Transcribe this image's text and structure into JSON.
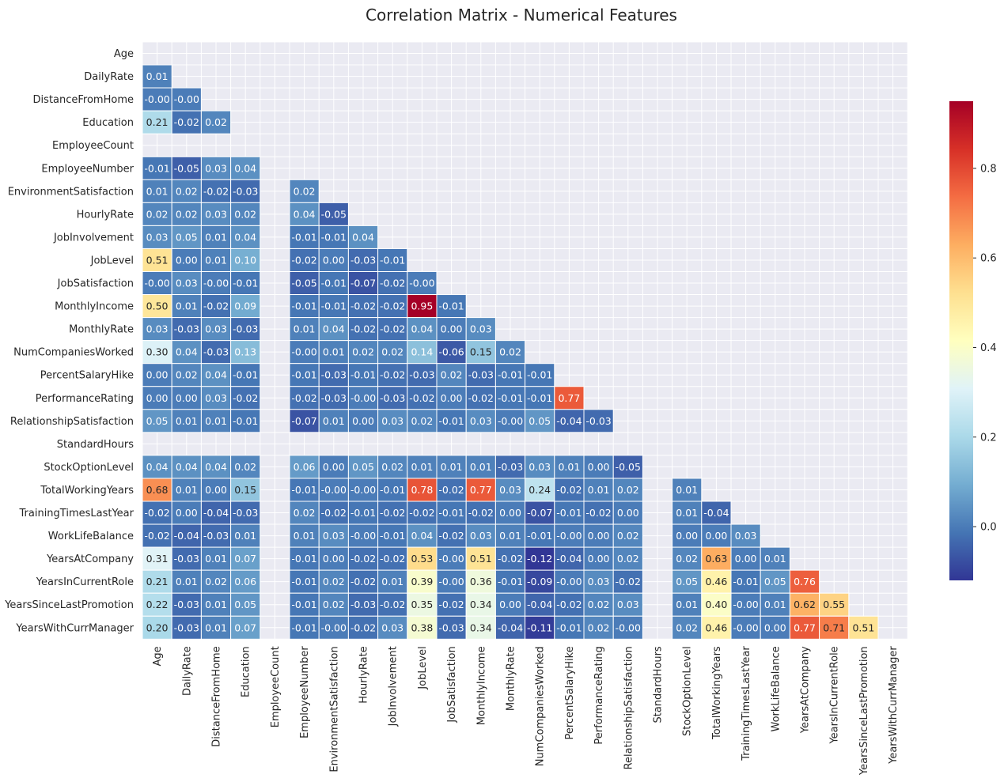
{
  "chart_data": {
    "type": "heatmap",
    "title": "Correlation Matrix - Numerical Features",
    "mask": "upper-triangle-and-diagonal",
    "value_format": "0.00",
    "colormap": "RdYlBu_r",
    "colorscale": {
      "vmin": -0.12,
      "vmax": 0.95,
      "stops": [
        {
          "t": 0.0,
          "color": "#313695"
        },
        {
          "t": 0.1,
          "color": "#4575b4"
        },
        {
          "t": 0.2,
          "color": "#74add1"
        },
        {
          "t": 0.3,
          "color": "#abd9e9"
        },
        {
          "t": 0.4,
          "color": "#e0f3f8"
        },
        {
          "t": 0.5,
          "color": "#ffffbf"
        },
        {
          "t": 0.6,
          "color": "#fee090"
        },
        {
          "t": 0.7,
          "color": "#fdae61"
        },
        {
          "t": 0.8,
          "color": "#f46d43"
        },
        {
          "t": 0.9,
          "color": "#d73027"
        },
        {
          "t": 1.0,
          "color": "#a50026"
        }
      ],
      "ticks": [
        0.0,
        0.2,
        0.4,
        0.6,
        0.8
      ],
      "tick_labels": [
        "0.0",
        "0.2",
        "0.4",
        "0.6",
        "0.8"
      ]
    },
    "background_color": "#eaeaf2",
    "grid": true,
    "labels": [
      "Age",
      "DailyRate",
      "DistanceFromHome",
      "Education",
      "EmployeeCount",
      "EmployeeNumber",
      "EnvironmentSatisfaction",
      "HourlyRate",
      "JobInvolvement",
      "JobLevel",
      "JobSatisfaction",
      "MonthlyIncome",
      "MonthlyRate",
      "NumCompaniesWorked",
      "PercentSalaryHike",
      "PerformanceRating",
      "RelationshipSatisfaction",
      "StandardHours",
      "StockOptionLevel",
      "TotalWorkingYears",
      "TrainingTimesLastYear",
      "WorkLifeBalance",
      "YearsAtCompany",
      "YearsInCurrentRole",
      "YearsSinceLastPromotion",
      "YearsWithCurrManager"
    ],
    "lower_triangle": [
      [],
      [
        0.01
      ],
      [
        -0.0,
        -0.0
      ],
      [
        0.21,
        -0.02,
        0.02
      ],
      [
        null,
        null,
        null,
        null
      ],
      [
        -0.01,
        -0.05,
        0.03,
        0.04,
        null
      ],
      [
        0.01,
        0.02,
        -0.02,
        -0.03,
        null,
        0.02
      ],
      [
        0.02,
        0.02,
        0.03,
        0.02,
        null,
        0.04,
        -0.05
      ],
      [
        0.03,
        0.05,
        0.01,
        0.04,
        null,
        -0.01,
        -0.01,
        0.04
      ],
      [
        0.51,
        0.0,
        0.01,
        0.1,
        null,
        -0.02,
        0.0,
        -0.03,
        -0.01
      ],
      [
        -0.0,
        0.03,
        -0.0,
        -0.01,
        null,
        -0.05,
        -0.01,
        -0.07,
        -0.02,
        -0.0
      ],
      [
        0.5,
        0.01,
        -0.02,
        0.09,
        null,
        -0.01,
        -0.01,
        -0.02,
        -0.02,
        0.95,
        -0.01
      ],
      [
        0.03,
        -0.03,
        0.03,
        -0.03,
        null,
        0.01,
        0.04,
        -0.02,
        -0.02,
        0.04,
        0.0,
        0.03
      ],
      [
        0.3,
        0.04,
        -0.03,
        0.13,
        null,
        -0.0,
        0.01,
        0.02,
        0.02,
        0.14,
        -0.06,
        0.15,
        0.02
      ],
      [
        0.0,
        0.02,
        0.04,
        -0.01,
        null,
        -0.01,
        -0.03,
        -0.01,
        -0.02,
        -0.03,
        0.02,
        -0.03,
        -0.01,
        -0.01
      ],
      [
        0.0,
        0.0,
        0.03,
        -0.02,
        null,
        -0.02,
        -0.03,
        -0.0,
        -0.03,
        -0.02,
        0.0,
        -0.02,
        -0.01,
        -0.01,
        0.77
      ],
      [
        0.05,
        0.01,
        0.01,
        -0.01,
        null,
        -0.07,
        0.01,
        0.0,
        0.03,
        0.02,
        -0.01,
        0.03,
        -0.0,
        0.05,
        -0.04,
        -0.03
      ],
      [
        null,
        null,
        null,
        null,
        null,
        null,
        null,
        null,
        null,
        null,
        null,
        null,
        null,
        null,
        null,
        null,
        null
      ],
      [
        0.04,
        0.04,
        0.04,
        0.02,
        null,
        0.06,
        0.0,
        0.05,
        0.02,
        0.01,
        0.01,
        0.01,
        -0.03,
        0.03,
        0.01,
        0.0,
        -0.05,
        null
      ],
      [
        0.68,
        0.01,
        0.0,
        0.15,
        null,
        -0.01,
        -0.0,
        -0.0,
        -0.01,
        0.78,
        -0.02,
        0.77,
        0.03,
        0.24,
        -0.02,
        0.01,
        0.02,
        null,
        0.01
      ],
      [
        -0.02,
        0.0,
        -0.04,
        -0.03,
        null,
        0.02,
        -0.02,
        -0.01,
        -0.02,
        -0.02,
        -0.01,
        -0.02,
        0.0,
        -0.07,
        -0.01,
        -0.02,
        0.0,
        null,
        0.01,
        -0.04
      ],
      [
        -0.02,
        -0.04,
        -0.03,
        0.01,
        null,
        0.01,
        0.03,
        -0.0,
        -0.01,
        0.04,
        -0.02,
        0.03,
        0.01,
        -0.01,
        -0.0,
        0.0,
        0.02,
        null,
        0.0,
        0.0,
        0.03
      ],
      [
        0.31,
        -0.03,
        0.01,
        0.07,
        null,
        -0.01,
        0.0,
        -0.02,
        -0.02,
        0.53,
        -0.0,
        0.51,
        -0.02,
        -0.12,
        -0.04,
        0.0,
        0.02,
        null,
        0.02,
        0.63,
        0.0,
        0.01
      ],
      [
        0.21,
        0.01,
        0.02,
        0.06,
        null,
        -0.01,
        0.02,
        -0.02,
        0.01,
        0.39,
        -0.0,
        0.36,
        -0.01,
        -0.09,
        -0.0,
        0.03,
        -0.02,
        null,
        0.05,
        0.46,
        -0.01,
        0.05,
        0.76
      ],
      [
        0.22,
        -0.03,
        0.01,
        0.05,
        null,
        -0.01,
        0.02,
        -0.03,
        -0.02,
        0.35,
        -0.02,
        0.34,
        0.0,
        -0.04,
        -0.02,
        0.02,
        0.03,
        null,
        0.01,
        0.4,
        -0.0,
        0.01,
        0.62,
        0.55
      ],
      [
        0.2,
        -0.03,
        0.01,
        0.07,
        null,
        -0.01,
        -0.0,
        -0.02,
        0.03,
        0.38,
        -0.03,
        0.34,
        -0.04,
        -0.11,
        -0.01,
        0.02,
        -0.0,
        null,
        0.02,
        0.46,
        -0.0,
        0.0,
        0.77,
        0.71,
        0.51
      ]
    ]
  }
}
